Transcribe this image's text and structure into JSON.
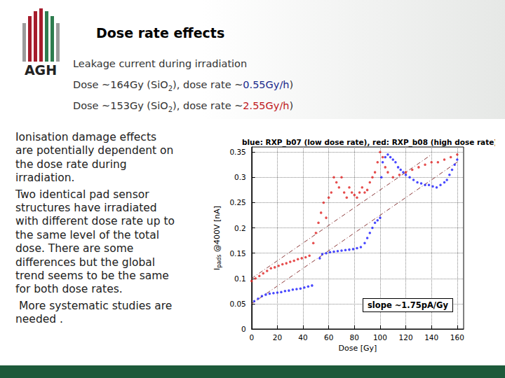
{
  "slide": {
    "logo": "AGH",
    "title": "Dose rate effects",
    "lines": [
      [
        {
          "text": "Leakage current during irradiation"
        }
      ],
      [
        {
          "text": "Dose ~164Gy (SiO"
        },
        {
          "text": "2",
          "sub": true
        },
        {
          "text": "), dose rate ~"
        },
        {
          "text": "0.55Gy/h",
          "color": "#1a2a8c"
        },
        {
          "text": ")"
        }
      ],
      [
        {
          "text": "Dose ~153Gy (SiO"
        },
        {
          "text": "2",
          "sub": true
        },
        {
          "text": "), dose rate ~"
        },
        {
          "text": "2.55Gy/h",
          "color": "#c0181c"
        },
        {
          "text": ")"
        }
      ]
    ],
    "body": [
      [
        "Ionisation damage effects",
        "are potentially dependent on",
        "the dose rate during",
        "irradiation."
      ],
      [
        "Two identical pad sensor",
        "structures have irradiated",
        "with different dose rate up to",
        "the same level of the total",
        "dose. There are some",
        "differences but the global",
        "trend seems to be the same",
        "for both dose rates."
      ],
      [
        " More systematic studies are",
        "needed ."
      ]
    ]
  },
  "chart_data": {
    "type": "scatter",
    "title": "blue: RXP_b07 (low dose rate), red: RXP_b08 (high dose rate)",
    "xlabel": "Dose [Gy]",
    "ylabel": {
      "main": "I",
      "sub": "pads",
      "rest": " @400V [nA]"
    },
    "annotation": "slope ~1.75pA/Gy",
    "xlim": [
      0,
      165
    ],
    "xticks": [
      0,
      20,
      40,
      60,
      80,
      100,
      120,
      140,
      160
    ],
    "ylim": [
      0,
      0.36
    ],
    "yticks": [
      0,
      0.05,
      0.1,
      0.15,
      0.2,
      0.25,
      0.3,
      0.35
    ],
    "grid": true,
    "series": [
      {
        "type": "scatter",
        "color": "#1a1aff",
        "marker": "circle",
        "x": [
          2,
          5,
          8,
          11,
          14,
          17,
          20,
          23,
          26,
          29,
          32,
          35,
          38,
          41,
          44,
          47,
          53,
          55,
          58,
          61,
          64,
          67,
          70,
          73,
          76,
          79,
          82,
          85,
          88,
          90,
          92,
          94,
          96,
          98,
          100,
          101,
          102,
          104,
          106,
          108,
          110,
          112,
          114,
          116,
          118,
          120,
          123,
          126,
          129,
          132,
          135,
          138,
          141,
          144,
          147,
          150,
          152,
          154,
          156,
          158,
          160
        ],
        "values": [
          0.055,
          0.06,
          0.065,
          0.068,
          0.07,
          0.071,
          0.072,
          0.073,
          0.075,
          0.076,
          0.078,
          0.079,
          0.08,
          0.082,
          0.084,
          0.086,
          0.14,
          0.148,
          0.15,
          0.152,
          0.153,
          0.154,
          0.155,
          0.156,
          0.157,
          0.158,
          0.16,
          0.162,
          0.17,
          0.18,
          0.19,
          0.2,
          0.21,
          0.215,
          0.22,
          0.3,
          0.33,
          0.34,
          0.345,
          0.34,
          0.335,
          0.33,
          0.32,
          0.315,
          0.31,
          0.305,
          0.3,
          0.295,
          0.29,
          0.288,
          0.285,
          0.285,
          0.282,
          0.28,
          0.285,
          0.29,
          0.295,
          0.305,
          0.315,
          0.325,
          0.335
        ]
      },
      {
        "type": "scatter",
        "color": "#e02020",
        "marker": "circle",
        "x": [
          0,
          3,
          6,
          9,
          12,
          15,
          18,
          21,
          24,
          27,
          30,
          33,
          36,
          39,
          42,
          45,
          48,
          50,
          52,
          54,
          56,
          58,
          60,
          62,
          64,
          66,
          68,
          70,
          72,
          74,
          76,
          78,
          80,
          82,
          84,
          86,
          88,
          90,
          92,
          94,
          96,
          98,
          100,
          102,
          104,
          106,
          110,
          115,
          120,
          125,
          130,
          135,
          140,
          145,
          150,
          155,
          160
        ],
        "values": [
          0.095,
          0.1,
          0.105,
          0.11,
          0.115,
          0.12,
          0.122,
          0.125,
          0.128,
          0.13,
          0.133,
          0.135,
          0.138,
          0.14,
          0.142,
          0.145,
          0.17,
          0.19,
          0.21,
          0.23,
          0.25,
          0.22,
          0.26,
          0.27,
          0.3,
          0.29,
          0.28,
          0.3,
          0.27,
          0.26,
          0.28,
          0.27,
          0.265,
          0.26,
          0.27,
          0.28,
          0.27,
          0.275,
          0.29,
          0.3,
          0.31,
          0.33,
          0.35,
          0.34,
          0.32,
          0.31,
          0.3,
          0.305,
          0.31,
          0.315,
          0.32,
          0.325,
          0.33,
          0.33,
          0.335,
          0.34,
          0.345
        ]
      },
      {
        "type": "line",
        "color": "#8b3a3a",
        "line_style": "dashdot",
        "x": [
          0,
          140
        ],
        "values": [
          0.1,
          0.345
        ]
      },
      {
        "type": "line",
        "color": "#8b3a3a",
        "line_style": "dashdot",
        "x": [
          0,
          160
        ],
        "values": [
          0.05,
          0.33
        ]
      }
    ]
  }
}
